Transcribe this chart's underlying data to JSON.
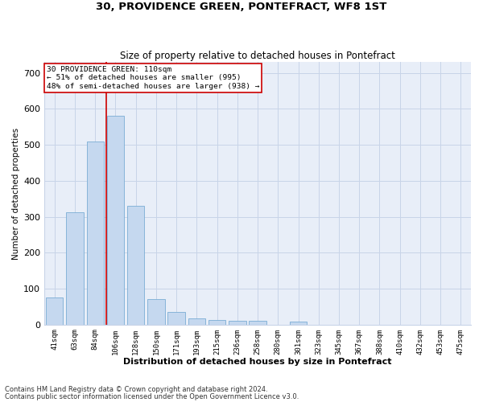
{
  "title": "30, PROVIDENCE GREEN, PONTEFRACT, WF8 1ST",
  "subtitle": "Size of property relative to detached houses in Pontefract",
  "xlabel": "Distribution of detached houses by size in Pontefract",
  "ylabel": "Number of detached properties",
  "bar_color": "#c5d8ef",
  "bar_edge_color": "#7aadd4",
  "grid_color": "#c8d4e8",
  "background_color": "#e8eef8",
  "annotation_box_color": "#cc0000",
  "annotation_line_color": "#cc0000",
  "property_label": "30 PROVIDENCE GREEN: 110sqm",
  "pct_smaller": "51% of detached houses are smaller (995)",
  "pct_larger": "48% of semi-detached houses are larger (938)",
  "categories": [
    "41sqm",
    "63sqm",
    "84sqm",
    "106sqm",
    "128sqm",
    "150sqm",
    "171sqm",
    "193sqm",
    "215sqm",
    "236sqm",
    "258sqm",
    "280sqm",
    "301sqm",
    "323sqm",
    "345sqm",
    "367sqm",
    "388sqm",
    "410sqm",
    "432sqm",
    "453sqm",
    "475sqm"
  ],
  "values": [
    75,
    312,
    510,
    580,
    330,
    70,
    35,
    17,
    12,
    11,
    11,
    0,
    8,
    0,
    0,
    0,
    0,
    0,
    0,
    0,
    0
  ],
  "marker_bin_index": 3,
  "ylim": [
    0,
    730
  ],
  "yticks": [
    0,
    100,
    200,
    300,
    400,
    500,
    600,
    700
  ],
  "footnote1": "Contains HM Land Registry data © Crown copyright and database right 2024.",
  "footnote2": "Contains public sector information licensed under the Open Government Licence v3.0."
}
